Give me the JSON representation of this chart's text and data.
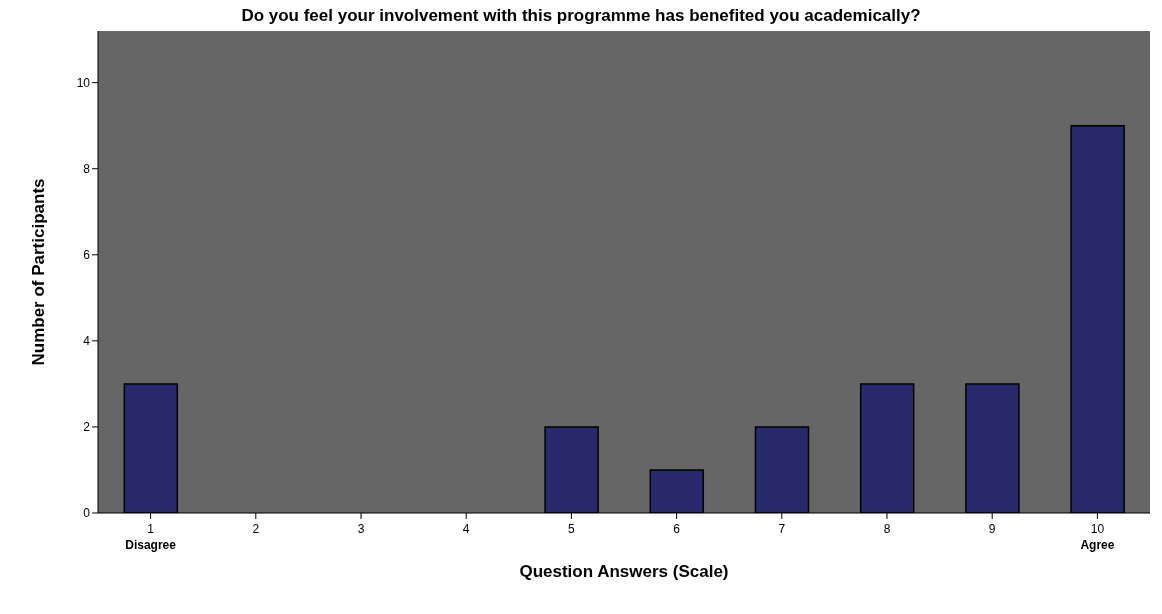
{
  "chart_data": {
    "type": "bar",
    "title": "Do you feel your involvement with this programme has benefited you academically?",
    "xlabel": "Question Answers (Scale)",
    "ylabel": "Number of Participants",
    "categories": [
      "1\nDisagree",
      "2",
      "3",
      "4",
      "5",
      "6",
      "7",
      "8",
      "9",
      "10\nAgree"
    ],
    "values": [
      3,
      0,
      0,
      0,
      2,
      1,
      2,
      3,
      3,
      9
    ],
    "color": "#29296e",
    "ylim": [
      0,
      11.2
    ],
    "yticks": [
      0,
      2,
      4,
      6,
      8,
      10
    ],
    "grid": false
  }
}
